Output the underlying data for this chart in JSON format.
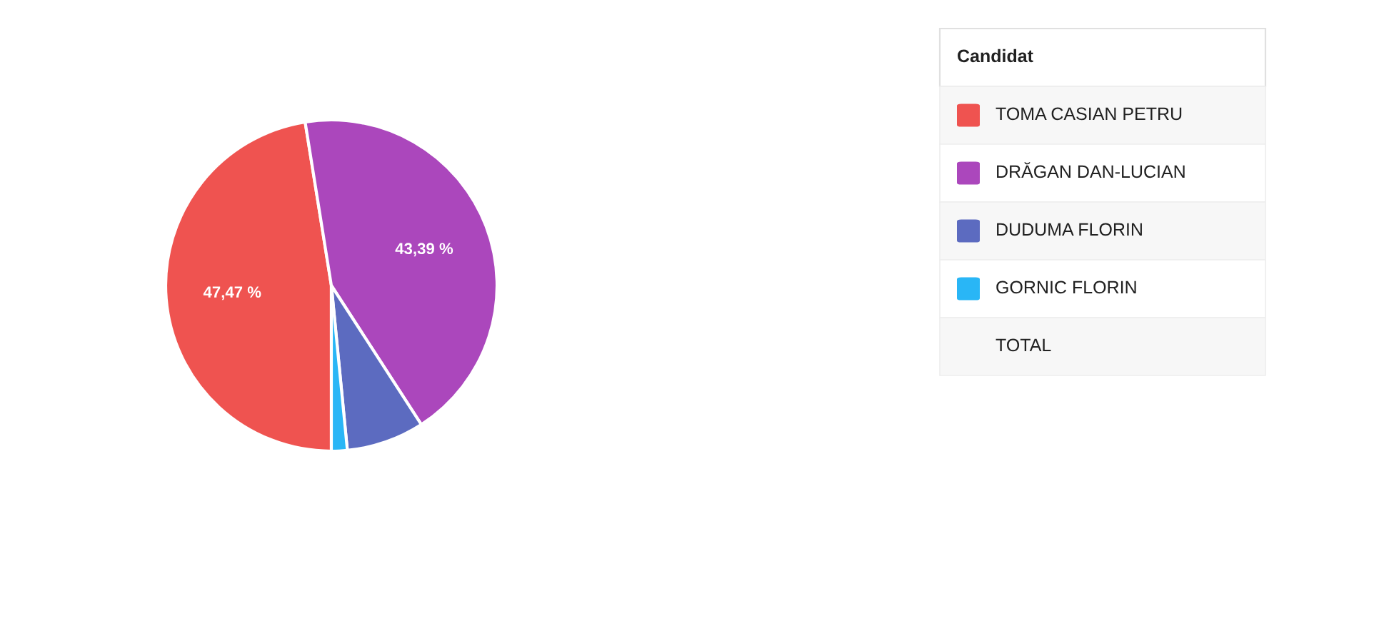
{
  "chart_data": {
    "type": "pie",
    "categories": [
      "TOMA CASIAN PETRU",
      "DRĂGAN DAN-LUCIAN",
      "DUDUMA FLORIN",
      "GORNIC FLORIN"
    ],
    "values": [
      47.47,
      43.39,
      7.6,
      1.54
    ],
    "colors": [
      "#ef5350",
      "#ab47bc",
      "#5c6bc0",
      "#29b6f6"
    ],
    "value_labels": [
      "47,47 %",
      "43,39 %",
      null,
      null
    ],
    "legend": "top right",
    "legend_title": "Candidat",
    "annotations": [
      "TOTAL"
    ]
  }
}
